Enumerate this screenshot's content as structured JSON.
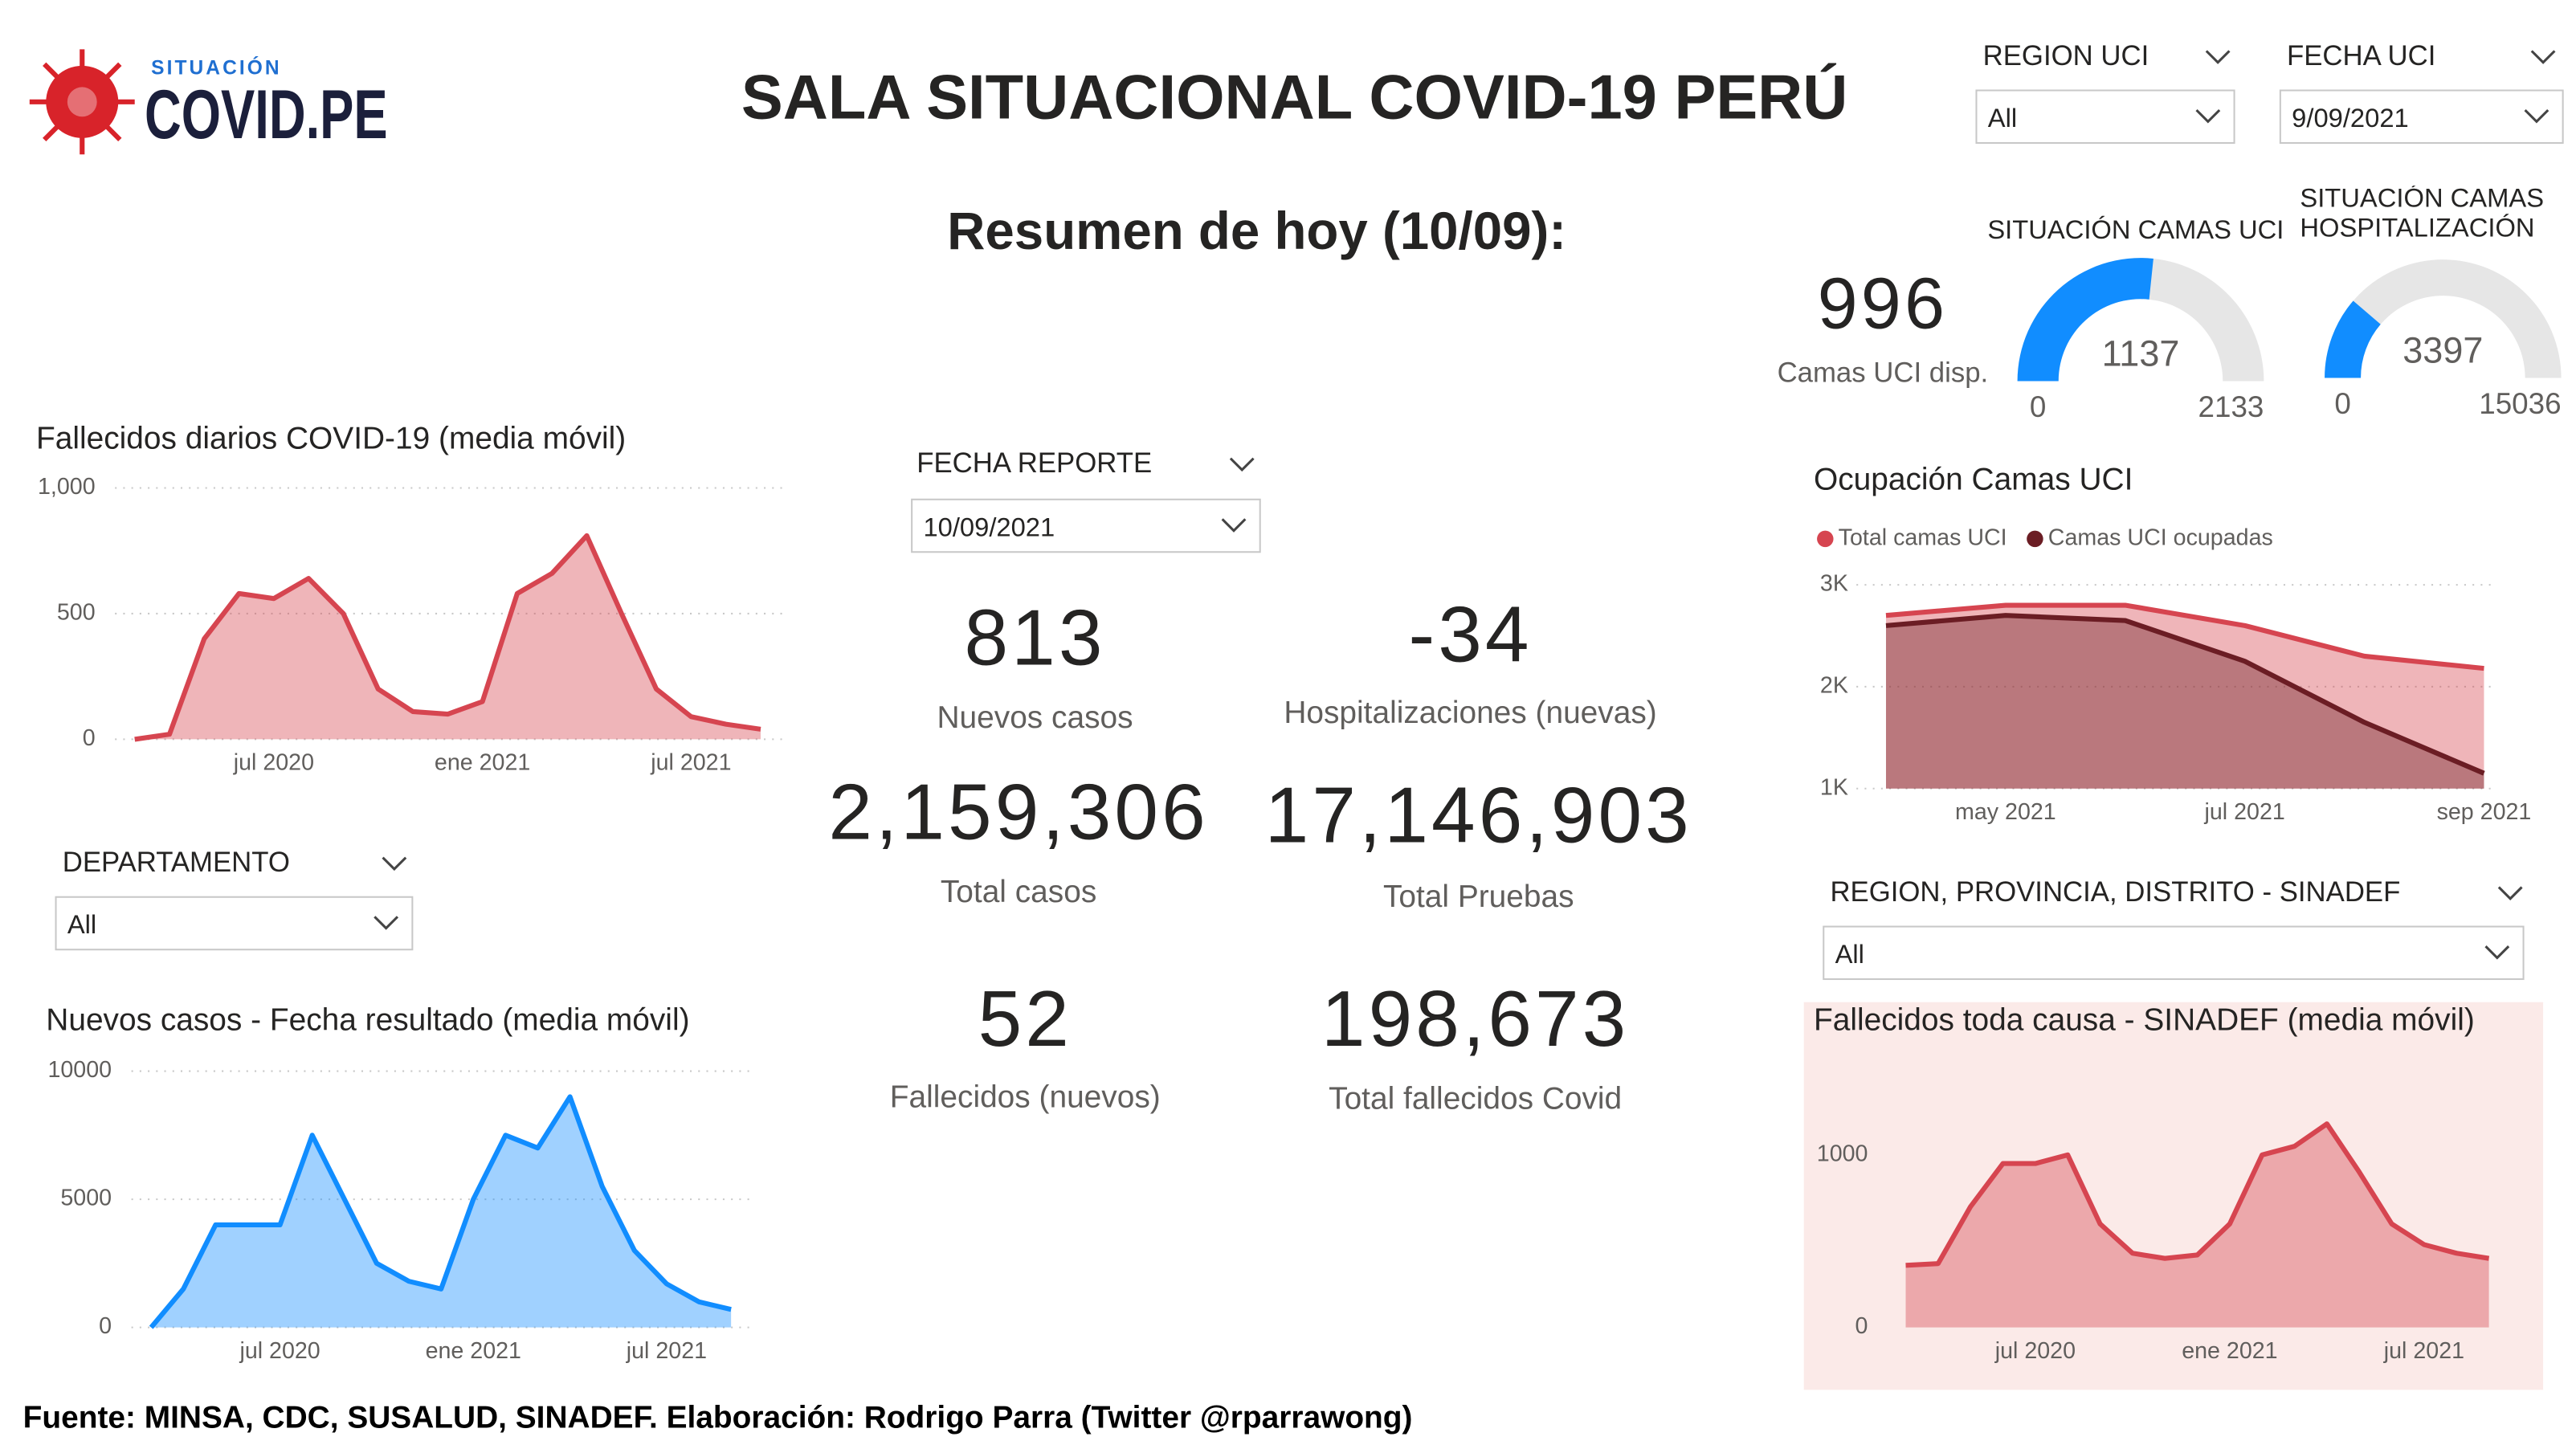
{
  "header": {
    "logo_top": "SITUACIÓN",
    "logo_main": "COVID.PE",
    "title": "SALA SITUACIONAL COVID-19 PERÚ",
    "subtitle": "Resumen de hoy (10/09):"
  },
  "filters": [
    {
      "title": "REGION UCI",
      "value": "All"
    },
    {
      "title": "FECHA UCI",
      "value": "9/09/2021"
    },
    {
      "title": "FECHA REPORTE",
      "value": "10/09/2021"
    },
    {
      "title": "DEPARTAMENTO",
      "value": "All"
    },
    {
      "title": "REGION, PROVINCIA, DISTRITO - SINADEF",
      "value": "All"
    }
  ],
  "kpis": [
    {
      "value": "996",
      "label": "Camas UCI disp."
    },
    {
      "value": "813",
      "label": "Nuevos casos"
    },
    {
      "value": "-34",
      "label": "Hospitalizaciones (nuevas)"
    },
    {
      "value": "2,159,306",
      "label": "Total casos"
    },
    {
      "value": "17,146,903",
      "label": "Total Pruebas"
    },
    {
      "value": "52",
      "label": "Fallecidos (nuevos)"
    },
    {
      "value": "198,673",
      "label": "Total fallecidos Covid"
    }
  ],
  "chart_data": [
    {
      "type": "gauge",
      "title": "SITUACIÓN CAMAS UCI",
      "value": 1137,
      "min": 0,
      "max": 2133,
      "color": "#118dff"
    },
    {
      "type": "gauge",
      "title": "SITUACIÓN CAMAS HOSPITALIZACIÓN",
      "value": 3397,
      "min": 0,
      "max": 15036,
      "color": "#118dff"
    },
    {
      "type": "area",
      "title": "Fallecidos diarios COVID-19 (media móvil)",
      "x": [
        "2020-03",
        "2020-04",
        "2020-05",
        "2020-06",
        "2020-07",
        "2020-08",
        "2020-09",
        "2020-10",
        "2020-11",
        "2020-12",
        "2021-01",
        "2021-02",
        "2021-03",
        "2021-04",
        "2021-05",
        "2021-06",
        "2021-07",
        "2021-08",
        "2021-09"
      ],
      "values": [
        0,
        20,
        400,
        580,
        560,
        640,
        500,
        200,
        110,
        100,
        150,
        580,
        660,
        810,
        500,
        200,
        90,
        60,
        40
      ],
      "color": "#d64550",
      "xlim": [
        "2020-03",
        "2021-09"
      ],
      "xticks": [
        {
          "value": "2020-07",
          "label": "jul 2020"
        },
        {
          "value": "2021-01",
          "label": "ene 2021"
        },
        {
          "value": "2021-07",
          "label": "jul 2021"
        }
      ],
      "ylim": [
        0,
        1000
      ],
      "yticks": [
        0,
        500,
        {
          "value": 1000,
          "label": "1,000"
        }
      ],
      "grid": true
    },
    {
      "type": "area",
      "title": "Nuevos casos - Fecha resultado (media móvil)",
      "x": [
        "2020-03",
        "2020-04",
        "2020-05",
        "2020-06",
        "2020-07",
        "2020-08",
        "2020-09",
        "2020-10",
        "2020-11",
        "2020-12",
        "2021-01",
        "2021-02",
        "2021-03",
        "2021-04",
        "2021-05",
        "2021-06",
        "2021-07",
        "2021-08",
        "2021-09"
      ],
      "values": [
        0,
        1500,
        4000,
        4000,
        4000,
        7500,
        5000,
        2500,
        1800,
        1500,
        5000,
        7500,
        7000,
        9000,
        5500,
        3000,
        1700,
        1000,
        700
      ],
      "color": "#118dff",
      "xlim": [
        "2020-03",
        "2021-09"
      ],
      "xticks": [
        {
          "value": "2020-07",
          "label": "jul 2020"
        },
        {
          "value": "2021-01",
          "label": "ene 2021"
        },
        {
          "value": "2021-07",
          "label": "jul 2021"
        }
      ],
      "ylim": [
        0,
        10000
      ],
      "yticks": [
        0,
        5000,
        10000
      ],
      "grid": true
    },
    {
      "type": "area",
      "title": "Ocupación Camas UCI",
      "x": [
        "2021-04",
        "2021-05",
        "2021-06",
        "2021-07",
        "2021-08",
        "2021-09"
      ],
      "series": [
        {
          "name": "Total camas UCI",
          "color": "#d64550",
          "values": [
            2700,
            2800,
            2800,
            2600,
            2300,
            2180
          ]
        },
        {
          "name": "Camas UCI ocupadas",
          "color": "#6b1d24",
          "values": [
            2600,
            2700,
            2650,
            2250,
            1650,
            1150
          ]
        }
      ],
      "xlim": [
        "2021-04",
        "2021-09"
      ],
      "xticks": [
        {
          "value": "2021-05",
          "label": "may 2021"
        },
        {
          "value": "2021-07",
          "label": "jul 2021"
        },
        {
          "value": "2021-09",
          "label": "sep 2021"
        }
      ],
      "ylim": [
        1000,
        3000
      ],
      "yticks": [
        {
          "value": 1000,
          "label": "1K"
        },
        {
          "value": 2000,
          "label": "2K"
        },
        {
          "value": 3000,
          "label": "3K"
        }
      ],
      "grid": true
    },
    {
      "type": "area",
      "title": "Fallecidos toda causa - SINADEF (media móvil)",
      "x": [
        "2020-03",
        "2020-04",
        "2020-05",
        "2020-06",
        "2020-07",
        "2020-08",
        "2020-09",
        "2020-10",
        "2020-11",
        "2020-12",
        "2021-01",
        "2021-02",
        "2021-03",
        "2021-04",
        "2021-05",
        "2021-06",
        "2021-07",
        "2021-08",
        "2021-09"
      ],
      "values": [
        360,
        370,
        700,
        950,
        950,
        1000,
        600,
        430,
        400,
        420,
        600,
        1000,
        1050,
        1180,
        900,
        600,
        480,
        430,
        400
      ],
      "color": "#d64550",
      "xlim": [
        "2020-03",
        "2021-09"
      ],
      "xticks": [
        {
          "value": "2020-07",
          "label": "jul 2020"
        },
        {
          "value": "2021-01",
          "label": "ene 2021"
        },
        {
          "value": "2021-07",
          "label": "jul 2021"
        }
      ],
      "ylim": [
        0,
        1400
      ],
      "yticks": [
        0,
        1000
      ],
      "grid": false
    }
  ],
  "footer": "Fuente: MINSA, CDC, SUSALUD, SINADEF. Elaboración: Rodrigo Parra (Twitter @rparrawong)"
}
